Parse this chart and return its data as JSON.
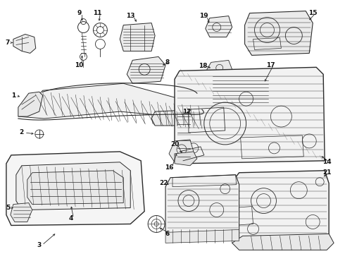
{
  "background_color": "#ffffff",
  "line_color": "#2a2a2a",
  "fig_width": 4.9,
  "fig_height": 3.6,
  "dpi": 100,
  "callout_font_size": 6.5,
  "callout_font_weight": "bold",
  "callout_color": "#111111"
}
